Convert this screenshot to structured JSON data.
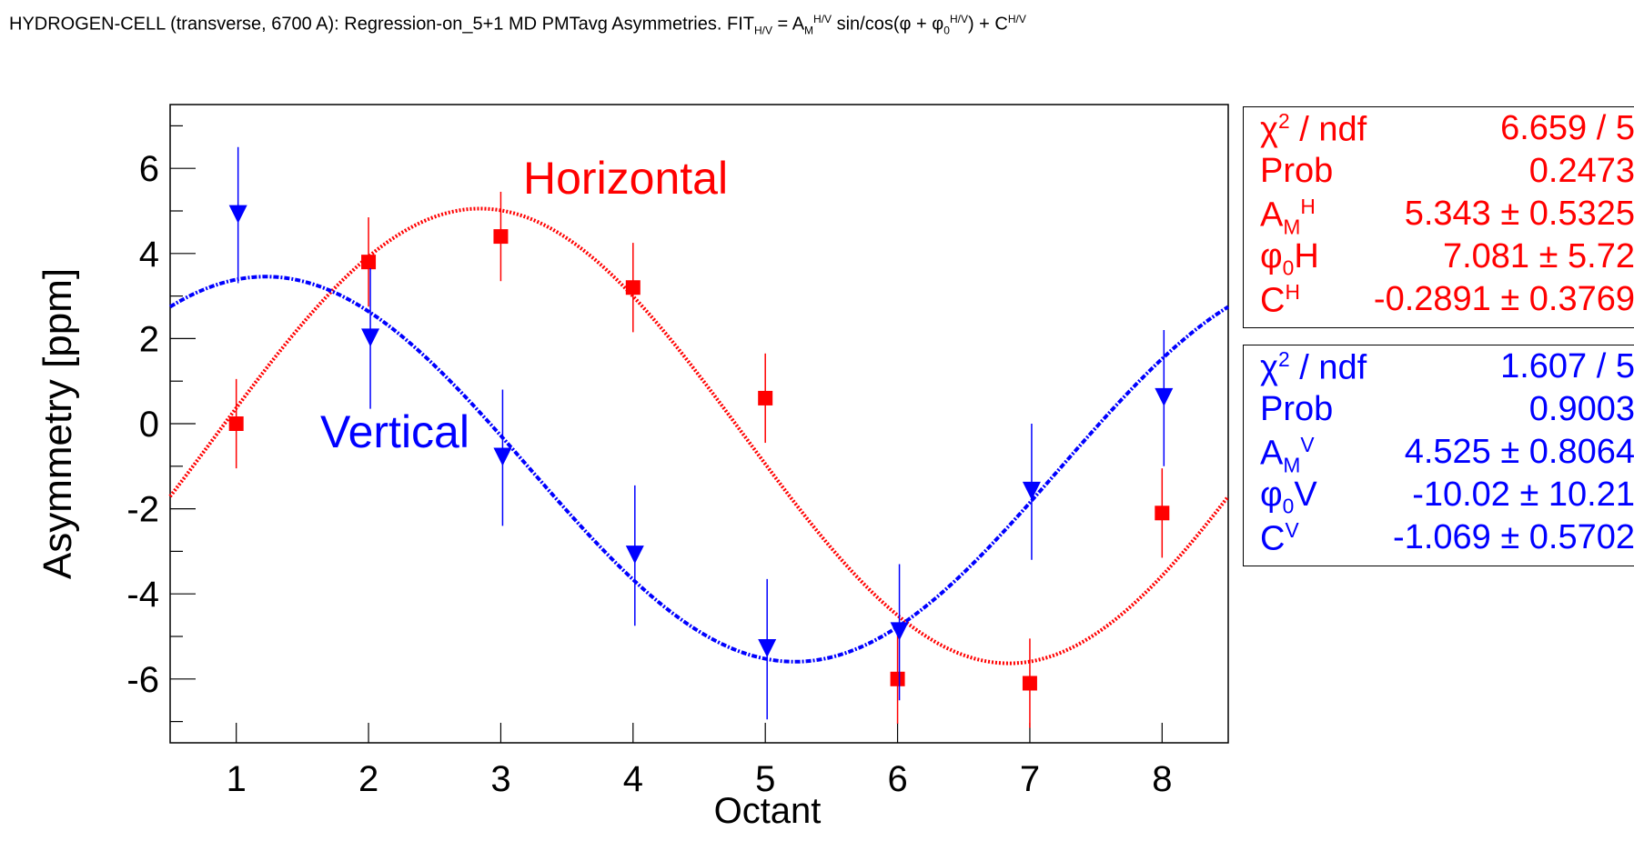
{
  "title_html": "HYDROGEN-CELL (transverse, 6700 A): Regression-on_5+1 MD PMTavg Asymmetries. FIT<sub>H/V</sub> = A<sub>M</sub><sup>H/V</sup> sin/cos(&phi; + &phi;<sub>0</sub><sup>H/V</sup>) + C<sup>H/V</sup>",
  "colors": {
    "horizontal": "#ff0000",
    "vertical": "#0000ff",
    "axis": "#000000"
  },
  "chart_data": {
    "type": "scatter",
    "title": "HYDROGEN-CELL (transverse, 6700 A): Regression-on_5+1 MD PMTavg Asymmetries. FIT_H/V = A_M^H/V sin/cos(φ + φ_0^H/V) + C^H/V",
    "xlabel": "Octant",
    "ylabel": "Asymmetry [ppm]",
    "xlim": [
      0.5,
      8.5
    ],
    "ylim": [
      -7.5,
      7.5
    ],
    "xticks": [
      1,
      2,
      3,
      4,
      5,
      6,
      7,
      8
    ],
    "yticks": [
      -6,
      -4,
      -2,
      0,
      2,
      4,
      6
    ],
    "grid": false,
    "series": [
      {
        "name": "Horizontal",
        "marker": "square",
        "color": "#ff0000",
        "x": [
          1,
          2,
          3,
          4,
          5,
          6,
          7,
          8
        ],
        "y": [
          0.0,
          3.8,
          4.4,
          3.2,
          0.6,
          -6.0,
          -6.1,
          -2.1
        ],
        "err": [
          1.05,
          1.05,
          1.05,
          1.05,
          1.05,
          1.05,
          1.05,
          1.05
        ],
        "fit": {
          "func": "sin",
          "A": 5.343,
          "phi0_deg": 7.081,
          "C": -0.2891,
          "style": "dotted"
        }
      },
      {
        "name": "Vertical",
        "marker": "triangle-down",
        "color": "#0000ff",
        "x": [
          1,
          2,
          3,
          4,
          5,
          6,
          7,
          8
        ],
        "y": [
          4.9,
          2.0,
          -0.8,
          -3.1,
          -5.3,
          -4.9,
          -1.6,
          0.6
        ],
        "err": [
          1.6,
          1.65,
          1.6,
          1.65,
          1.65,
          1.6,
          1.6,
          1.6
        ],
        "fit": {
          "func": "cos",
          "A": 4.525,
          "phi0_deg": -10.02,
          "C": -1.069,
          "style": "dash-dot"
        }
      }
    ],
    "annotations": [
      {
        "text": "Horizontal",
        "color": "#ff0000"
      },
      {
        "text": "Vertical",
        "color": "#0000ff"
      }
    ],
    "legend": "top-right"
  },
  "stats": {
    "horizontal": [
      {
        "key_html": "&chi;<sup>2</sup> / ndf",
        "value": "6.659 / 5"
      },
      {
        "key_html": "Prob",
        "value": "0.2473"
      },
      {
        "key_html": "A<sub>M</sub><sup>H</sup>",
        "value": "5.343 ± 0.5325"
      },
      {
        "key_html": "&phi;<sub>0</sub>H",
        "value": "7.081 ±  5.72"
      },
      {
        "key_html": "C<sup>H</sup>",
        "value": "-0.2891 ± 0.3769"
      }
    ],
    "vertical": [
      {
        "key_html": "&chi;<sup>2</sup> / ndf",
        "value": "1.607 / 5"
      },
      {
        "key_html": "Prob",
        "value": "0.9003"
      },
      {
        "key_html": "A<sub>M</sub><sup>V</sup>",
        "value": "4.525 ± 0.8064"
      },
      {
        "key_html": "&phi;<sub>0</sub>V",
        "value": "-10.02 ± 10.21"
      },
      {
        "key_html": "C<sup>V</sup>",
        "value": "-1.069 ± 0.5702"
      }
    ]
  }
}
